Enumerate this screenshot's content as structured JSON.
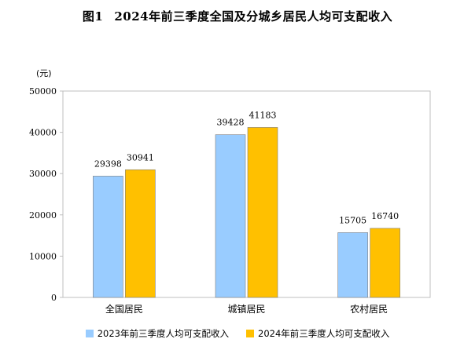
{
  "figure": {
    "number": "图1",
    "title": "2024年前三季度全国及分城乡居民人均可支配收入"
  },
  "chart_data": {
    "type": "bar",
    "unit_label": "(元)",
    "categories": [
      "全国居民",
      "城镇居民",
      "农村居民"
    ],
    "series": [
      {
        "name": "2023年前三季度人均可支配收入",
        "color": "#99CCFF",
        "values": [
          29398,
          39428,
          15705
        ]
      },
      {
        "name": "2024年前三季度人均可支配收入",
        "color": "#FFC000",
        "values": [
          30941,
          41183,
          16740
        ]
      }
    ],
    "ylim": [
      0,
      50000
    ],
    "yticks": [
      0,
      10000,
      20000,
      30000,
      40000,
      50000
    ],
    "legend_position": "bottom"
  }
}
